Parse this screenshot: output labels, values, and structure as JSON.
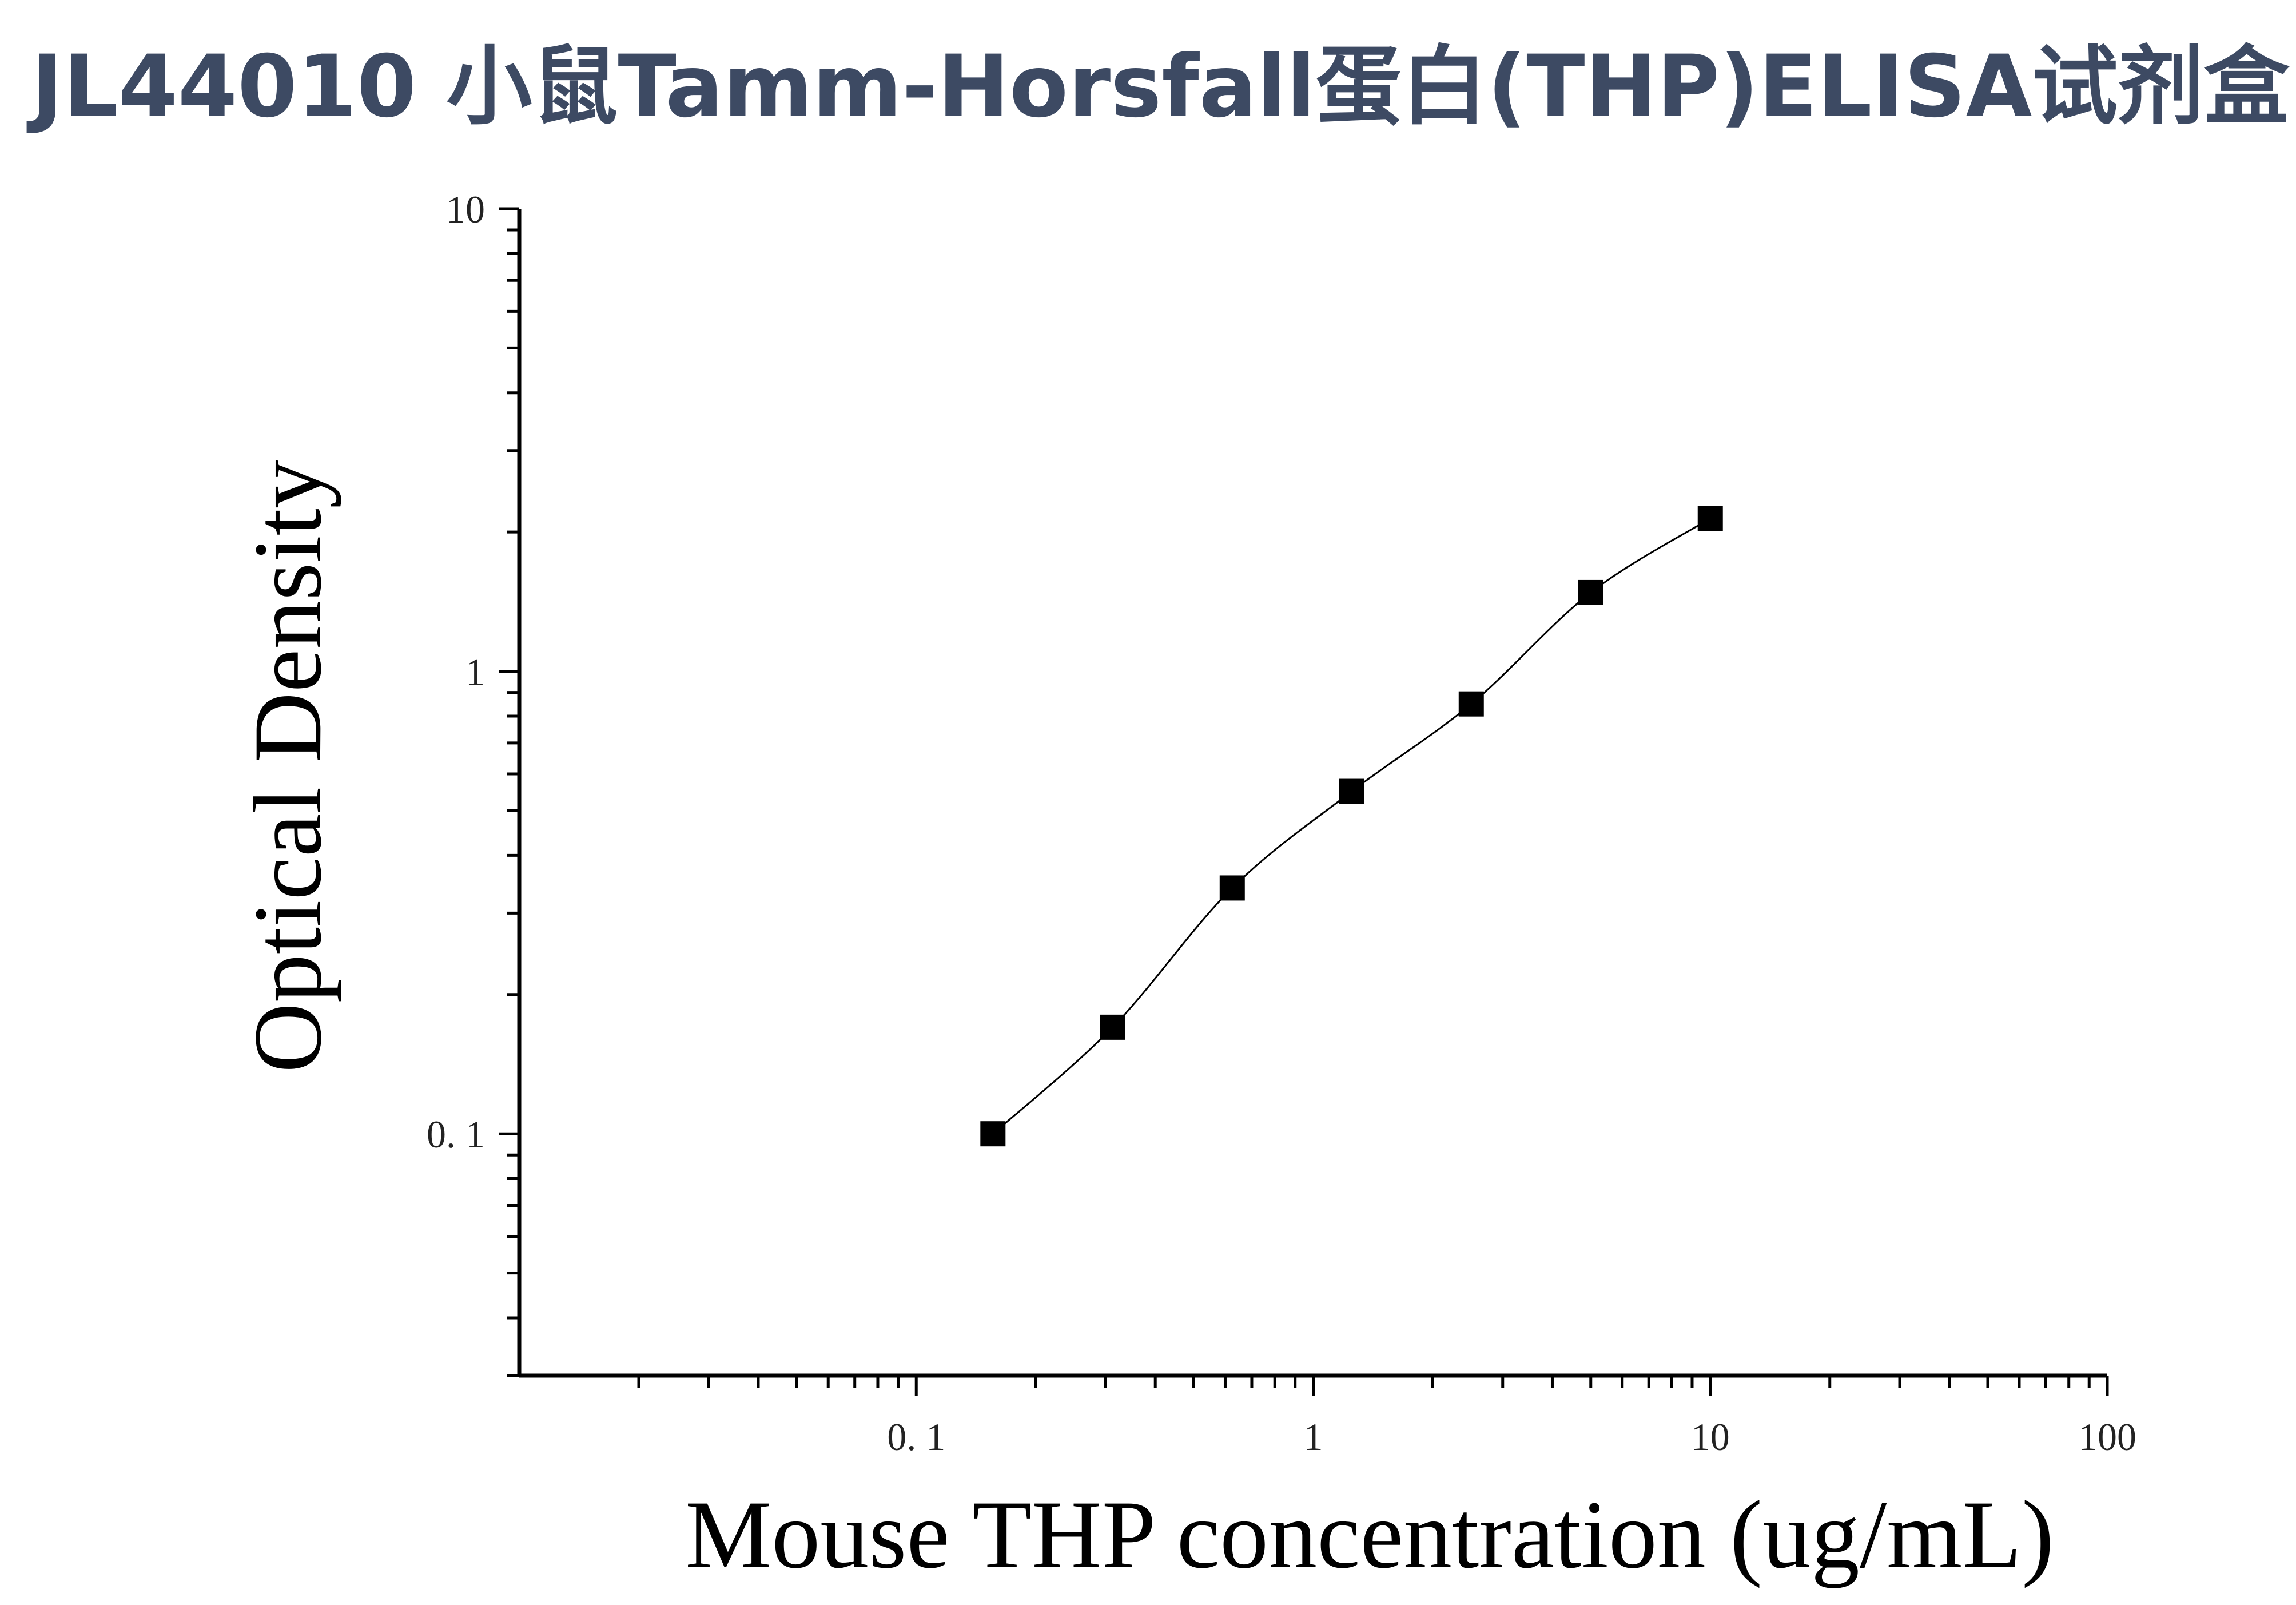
{
  "page": {
    "title": "JL44010 小鼠Tamm-Horsfall蛋白(THP)ELISA试剂盒"
  },
  "chart_data": {
    "type": "scatter",
    "title": "JL44010 小鼠Tamm-Horsfall蛋白(THP)ELISA试剂盒",
    "xlabel": "Mouse THP concentration (ug/mL)",
    "ylabel": "Optical Density",
    "xscale": "log",
    "yscale": "log",
    "xlim": [
      0.01,
      100
    ],
    "ylim": [
      0.03,
      10
    ],
    "x_tick_labels": [
      "0. 1",
      "1",
      "10",
      "100"
    ],
    "x_tick_values": [
      0.1,
      1,
      10,
      100
    ],
    "y_tick_labels": [
      "0. 1",
      "1",
      "10"
    ],
    "y_tick_values": [
      0.1,
      1,
      10
    ],
    "grid": false,
    "legend": "none",
    "marker": "square",
    "marker_color": "#000000",
    "line_color": "#000000",
    "series": [
      {
        "x": [
          0.156,
          0.3125,
          0.625,
          1.25,
          2.5,
          5,
          10
        ],
        "y": [
          0.1,
          0.17,
          0.34,
          0.55,
          0.85,
          1.48,
          2.14
        ],
        "fit": "smooth-curve"
      }
    ]
  }
}
